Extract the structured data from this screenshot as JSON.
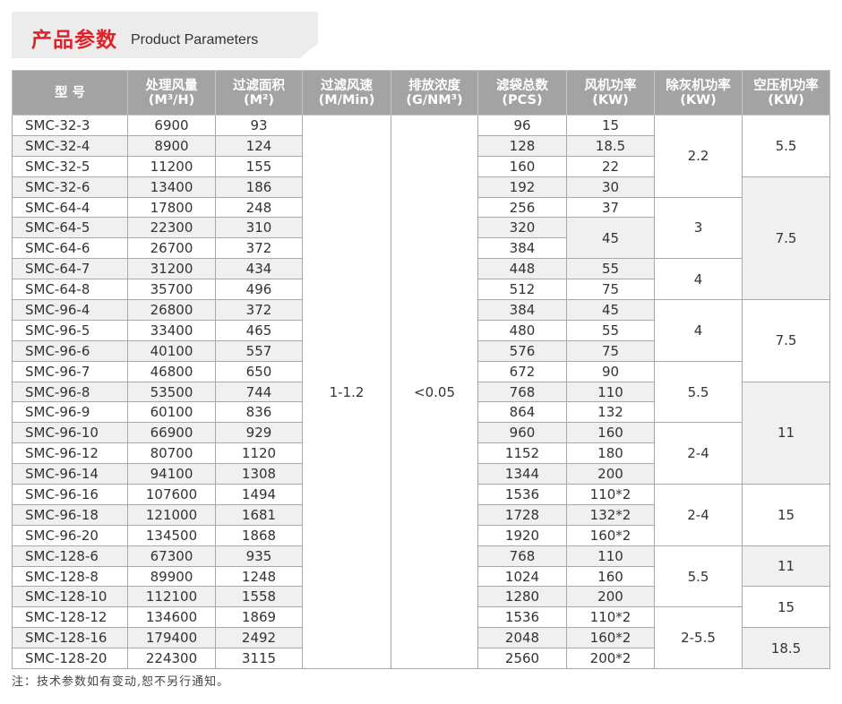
{
  "title": {
    "cn": "产品参数",
    "en": "Product Parameters"
  },
  "columns": [
    {
      "l1": "型 号",
      "l2": ""
    },
    {
      "l1": "处理风量",
      "l2": "(M³/H)"
    },
    {
      "l1": "过滤面积",
      "l2": "(M²)"
    },
    {
      "l1": "过滤风速",
      "l2": "(M/Min)"
    },
    {
      "l1": "排放浓度",
      "l2": "(G/NM³)"
    },
    {
      "l1": "滤袋总数",
      "l2": "(PCS)"
    },
    {
      "l1": "风机功率",
      "l2": "(KW)"
    },
    {
      "l1": "除灰机功率",
      "l2": "(KW)"
    },
    {
      "l1": "空压机功率",
      "l2": "(KW)"
    }
  ],
  "rows": [
    [
      "SMC-32-3",
      "6900",
      "93",
      "96",
      "15"
    ],
    [
      "SMC-32-4",
      "8900",
      "124",
      "128",
      "18.5"
    ],
    [
      "SMC-32-5",
      "11200",
      "155",
      "160",
      "22"
    ],
    [
      "SMC-32-6",
      "13400",
      "186",
      "192",
      "30"
    ],
    [
      "SMC-64-4",
      "17800",
      "248",
      "256",
      "37"
    ],
    [
      "SMC-64-5",
      "22300",
      "310",
      "320",
      "45"
    ],
    [
      "SMC-64-6",
      "26700",
      "372",
      "384",
      null
    ],
    [
      "SMC-64-7",
      "31200",
      "434",
      "448",
      "55"
    ],
    [
      "SMC-64-8",
      "35700",
      "496",
      "512",
      "75"
    ],
    [
      "SMC-96-4",
      "26800",
      "372",
      "384",
      "45"
    ],
    [
      "SMC-96-5",
      "33400",
      "465",
      "480",
      "55"
    ],
    [
      "SMC-96-6",
      "40100",
      "557",
      "576",
      "75"
    ],
    [
      "SMC-96-7",
      "46800",
      "650",
      "672",
      "90"
    ],
    [
      "SMC-96-8",
      "53500",
      "744",
      "768",
      "110"
    ],
    [
      "SMC-96-9",
      "60100",
      "836",
      "864",
      "132"
    ],
    [
      "SMC-96-10",
      "66900",
      "929",
      "960",
      "160"
    ],
    [
      "SMC-96-12",
      "80700",
      "1120",
      "1152",
      "180"
    ],
    [
      "SMC-96-14",
      "94100",
      "1308",
      "1344",
      "200"
    ],
    [
      "SMC-96-16",
      "107600",
      "1494",
      "1536",
      "110*2"
    ],
    [
      "SMC-96-18",
      "121000",
      "1681",
      "1728",
      "132*2"
    ],
    [
      "SMC-96-20",
      "134500",
      "1868",
      "1920",
      "160*2"
    ],
    [
      "SMC-128-6",
      "67300",
      "935",
      "768",
      "110"
    ],
    [
      "SMC-128-8",
      "89900",
      "1248",
      "1024",
      "160"
    ],
    [
      "SMC-128-10",
      "112100",
      "1558",
      "1280",
      "200"
    ],
    [
      "SMC-128-12",
      "134600",
      "1869",
      "1536",
      "110*2"
    ],
    [
      "SMC-128-16",
      "179400",
      "2492",
      "2048",
      "160*2"
    ],
    [
      "SMC-128-20",
      "224300",
      "3115",
      "2560",
      "200*2"
    ]
  ],
  "fan_merged": {
    "row": 5,
    "span": 2
  },
  "filter_speed": "1-1.2",
  "emission": "<0.05",
  "ash_groups": [
    {
      "value": "2.2",
      "span": 4
    },
    {
      "value": "3",
      "span": 3
    },
    {
      "value": "4",
      "span": 2
    },
    {
      "value": "4",
      "span": 3
    },
    {
      "value": "5.5",
      "span": 3
    },
    {
      "value": "2-4",
      "span": 3
    },
    {
      "value": "2-4",
      "span": 3
    },
    {
      "value": "5.5",
      "span": 3
    },
    {
      "value": "2-5.5",
      "span": 3
    }
  ],
  "air_groups": [
    {
      "value": "5.5",
      "span": 3,
      "shade": "white"
    },
    {
      "value": "7.5",
      "span": 6,
      "shade": "gray"
    },
    {
      "value": "7.5",
      "span": 4,
      "shade": "white"
    },
    {
      "value": "11",
      "span": 5,
      "shade": "gray"
    },
    {
      "value": "15",
      "span": 3,
      "shade": "white"
    },
    {
      "value": "11",
      "span": 2,
      "shade": "gray"
    },
    {
      "value": "15",
      "span": 2,
      "shade": "white"
    },
    {
      "value": "18.5",
      "span": 2,
      "shade": "gray"
    }
  ],
  "note": "注：技术参数如有变动,恕不另行通知。"
}
